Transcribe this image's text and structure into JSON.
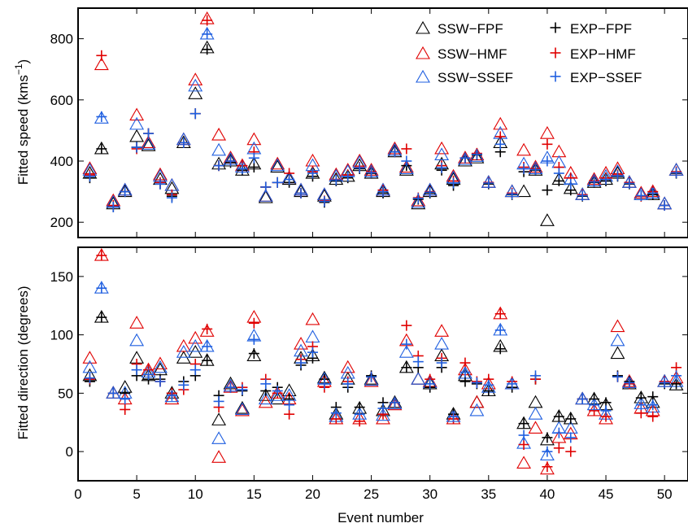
{
  "colors": {
    "FPF": "#000000",
    "HMF": "#e00000",
    "SSEF": "#1f5fe0"
  },
  "chart_data": [
    {
      "type": "scatter",
      "ylabel_main": "Fitted speed (kms",
      "ylabel_sup": "−1",
      "ylabel_close": ")",
      "xlim": [
        0,
        52
      ],
      "ylim": [
        150,
        900
      ],
      "xticks": [
        0,
        5,
        10,
        15,
        20,
        25,
        30,
        35,
        40,
        45,
        50
      ],
      "yticks": [
        200,
        400,
        600,
        800
      ],
      "legend": {
        "placement": "top-right",
        "items": [
          {
            "label": "SSW−FPF",
            "marker": "triangle",
            "color": "FPF"
          },
          {
            "label": "SSW−HMF",
            "marker": "triangle",
            "color": "HMF"
          },
          {
            "label": "SSW−SSEF",
            "marker": "triangle",
            "color": "SSEF"
          },
          {
            "label": "EXP−FPF",
            "marker": "plus",
            "color": "FPF"
          },
          {
            "label": "EXP−HMF",
            "marker": "plus",
            "color": "HMF"
          },
          {
            "label": "EXP−SSEF",
            "marker": "plus",
            "color": "SSEF"
          }
        ]
      },
      "x": [
        1,
        2,
        3,
        4,
        5,
        6,
        7,
        8,
        9,
        10,
        11,
        12,
        13,
        14,
        15,
        16,
        17,
        18,
        19,
        20,
        21,
        22,
        23,
        24,
        25,
        26,
        27,
        28,
        29,
        30,
        31,
        32,
        33,
        34,
        35,
        36,
        37,
        38,
        39,
        40,
        41,
        42,
        43,
        44,
        45,
        46,
        47,
        48,
        49,
        50,
        51
      ],
      "series": [
        {
          "name": "SSW−FPF",
          "marker": "triangle",
          "color": "FPF",
          "values": [
            360,
            440,
            260,
            300,
            480,
            450,
            340,
            310,
            460,
            620,
            770,
            390,
            400,
            370,
            390,
            280,
            380,
            340,
            300,
            360,
            285,
            340,
            350,
            385,
            360,
            300,
            430,
            370,
            260,
            300,
            390,
            340,
            400,
            410,
            330,
            460,
            300,
            300,
            370,
            205,
            340,
            310,
            290,
            330,
            340,
            360,
            330,
            290,
            290,
            260,
            370
          ]
        },
        {
          "name": "SSW−HMF",
          "marker": "triangle",
          "color": "HMF",
          "values": [
            375,
            715,
            270,
            305,
            550,
            460,
            355,
            320,
            470,
            665,
            865,
            485,
            410,
            385,
            470,
            285,
            390,
            345,
            305,
            400,
            290,
            355,
            370,
            400,
            370,
            305,
            440,
            380,
            270,
            305,
            440,
            350,
            410,
            420,
            330,
            520,
            300,
            435,
            380,
            490,
            430,
            360,
            290,
            340,
            360,
            375,
            330,
            295,
            300,
            260,
            370
          ]
        },
        {
          "name": "SSW−SSEF",
          "marker": "triangle",
          "color": "SSEF",
          "values": [
            370,
            540,
            265,
            305,
            520,
            455,
            350,
            320,
            470,
            645,
            815,
            435,
            405,
            380,
            440,
            285,
            385,
            345,
            305,
            385,
            290,
            350,
            365,
            395,
            365,
            305,
            435,
            375,
            265,
            305,
            420,
            345,
            405,
            415,
            330,
            490,
            300,
            390,
            375,
            410,
            395,
            340,
            290,
            335,
            350,
            365,
            330,
            290,
            295,
            260,
            370
          ]
        },
        {
          "name": "EXP−FPF",
          "marker": "plus",
          "color": "FPF",
          "values": [
            345,
            440,
            250,
            300,
            445,
            490,
            325,
            285,
            460,
            555,
            765,
            385,
            395,
            370,
            380,
            315,
            330,
            330,
            295,
            350,
            265,
            335,
            345,
            375,
            360,
            295,
            430,
            385,
            275,
            295,
            370,
            320,
            410,
            420,
            325,
            430,
            290,
            365,
            370,
            305,
            335,
            305,
            285,
            330,
            335,
            350,
            325,
            285,
            290,
            255,
            360
          ]
        },
        {
          "name": "EXP−HMF",
          "marker": "plus",
          "color": "HMF",
          "values": [
            355,
            745,
            255,
            300,
            440,
            490,
            330,
            290,
            460,
            555,
            860,
            385,
            400,
            385,
            430,
            315,
            330,
            360,
            295,
            365,
            270,
            340,
            355,
            380,
            365,
            305,
            430,
            440,
            280,
            300,
            385,
            335,
            410,
            425,
            330,
            480,
            295,
            380,
            375,
            455,
            380,
            345,
            290,
            335,
            345,
            355,
            330,
            285,
            300,
            255,
            365
          ]
        },
        {
          "name": "EXP−SSEF",
          "marker": "plus",
          "color": "SSEF",
          "values": [
            350,
            545,
            250,
            300,
            445,
            490,
            325,
            280,
            460,
            555,
            815,
            385,
            400,
            375,
            410,
            315,
            330,
            340,
            295,
            360,
            268,
            338,
            350,
            378,
            362,
            300,
            430,
            400,
            278,
            298,
            378,
            328,
            410,
            422,
            328,
            455,
            292,
            375,
            372,
            400,
            360,
            325,
            287,
            332,
            340,
            352,
            327,
            287,
            295,
            255,
            362
          ]
        }
      ]
    },
    {
      "type": "scatter",
      "xlabel": "Event number",
      "ylabel": "Fitted direction (degrees)",
      "xlim": [
        0,
        52
      ],
      "ylim": [
        -25,
        175
      ],
      "xticks": [
        0,
        5,
        10,
        15,
        20,
        25,
        30,
        35,
        40,
        45,
        50
      ],
      "yticks": [
        0,
        50,
        100,
        150
      ],
      "x": [
        1,
        2,
        3,
        4,
        5,
        6,
        7,
        8,
        9,
        10,
        11,
        12,
        13,
        14,
        15,
        16,
        17,
        18,
        19,
        20,
        21,
        22,
        23,
        24,
        25,
        26,
        27,
        28,
        29,
        30,
        31,
        32,
        33,
        34,
        35,
        36,
        37,
        38,
        39,
        40,
        41,
        42,
        43,
        44,
        45,
        46,
        47,
        48,
        49,
        50,
        51
      ],
      "series": [
        {
          "name": "SSW−FPF",
          "marker": "triangle",
          "color": "FPF",
          "values": [
            65,
            115,
            50,
            55,
            80,
            65,
            70,
            50,
            80,
            85,
            78,
            27,
            58,
            37,
            82,
            48,
            45,
            52,
            80,
            82,
            63,
            32,
            62,
            37,
            62,
            35,
            42,
            72,
            62,
            58,
            82,
            32,
            65,
            42,
            52,
            90,
            58,
            24,
            42,
            10,
            30,
            28,
            45,
            45,
            40,
            84,
            58,
            46,
            42,
            60,
            57
          ]
        },
        {
          "name": "SSW−HMF",
          "marker": "triangle",
          "color": "HMF",
          "values": [
            80,
            168,
            50,
            45,
            110,
            70,
            75,
            45,
            90,
            97,
            103,
            -5,
            55,
            35,
            115,
            42,
            50,
            45,
            92,
            113,
            60,
            28,
            72,
            28,
            60,
            28,
            40,
            95,
            62,
            60,
            103,
            28,
            70,
            42,
            58,
            118,
            58,
            -10,
            20,
            -15,
            12,
            15,
            45,
            35,
            28,
            107,
            60,
            37,
            35,
            60,
            63
          ]
        },
        {
          "name": "SSW−SSEF",
          "marker": "triangle",
          "color": "SSEF",
          "values": [
            72,
            140,
            50,
            50,
            95,
            68,
            72,
            47,
            85,
            90,
            90,
            11,
            56,
            36,
            99,
            45,
            48,
            48,
            86,
            98,
            62,
            30,
            67,
            32,
            61,
            31,
            41,
            85,
            62,
            59,
            92,
            30,
            67,
            35,
            55,
            104,
            58,
            7,
            32,
            -3,
            20,
            20,
            45,
            40,
            32,
            95,
            59,
            41,
            38,
            60,
            60
          ]
        },
        {
          "name": "EXP−FPF",
          "marker": "plus",
          "color": "FPF",
          "values": [
            60,
            115,
            50,
            50,
            65,
            62,
            62,
            50,
            60,
            65,
            78,
            48,
            55,
            52,
            84,
            52,
            55,
            45,
            74,
            80,
            62,
            38,
            55,
            38,
            65,
            42,
            42,
            72,
            72,
            55,
            72,
            32,
            60,
            58,
            52,
            88,
            55,
            24,
            62,
            12,
            30,
            28,
            45,
            45,
            42,
            65,
            60,
            46,
            47,
            58,
            58
          ]
        },
        {
          "name": "EXP−HMF",
          "marker": "plus",
          "color": "HMF",
          "values": [
            62,
            168,
            50,
            36,
            75,
            70,
            60,
            50,
            53,
            75,
            105,
            38,
            55,
            55,
            110,
            62,
            50,
            32,
            79,
            90,
            55,
            28,
            60,
            26,
            64,
            32,
            42,
            108,
            82,
            62,
            80,
            28,
            76,
            60,
            62,
            118,
            60,
            6,
            62,
            -13,
            3,
            0,
            45,
            35,
            30,
            64,
            58,
            33,
            30,
            60,
            72
          ]
        },
        {
          "name": "EXP−SSEF",
          "marker": "plus",
          "color": "SSEF",
          "values": [
            63,
            140,
            50,
            45,
            70,
            66,
            60,
            48,
            57,
            70,
            90,
            43,
            55,
            53,
            96,
            58,
            52,
            40,
            76,
            85,
            58,
            33,
            58,
            32,
            64,
            37,
            42,
            92,
            77,
            58,
            76,
            30,
            68,
            59,
            57,
            104,
            58,
            14,
            65,
            0,
            16,
            12,
            45,
            40,
            35,
            64,
            59,
            40,
            40,
            59,
            65
          ]
        }
      ]
    }
  ]
}
